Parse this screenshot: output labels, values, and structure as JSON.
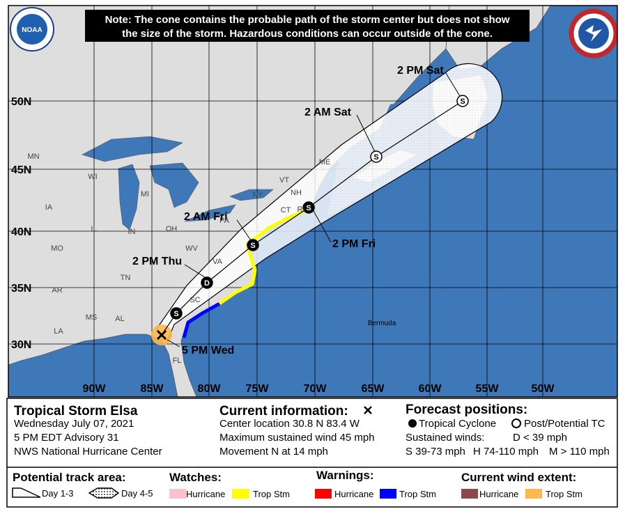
{
  "note_lines": [
    "Note: The cone contains the probable path of the storm center but does not show",
    "the size of the storm. Hazardous conditions can occur outside of the cone."
  ],
  "logos": {
    "noaa": "NOAA"
  },
  "map": {
    "lat_labels": [
      "50N",
      "45N",
      "40N",
      "35N",
      "30N"
    ],
    "lon_labels": [
      "90W",
      "85W",
      "80W",
      "75W",
      "70W",
      "65W",
      "60W",
      "55W",
      "50W"
    ],
    "state_labels": [
      "MN",
      "WI",
      "MI",
      "IA",
      "IL",
      "IN",
      "OH",
      "MO",
      "WV",
      "VA",
      "TN",
      "AR",
      "SC",
      "MS",
      "AL",
      "LA",
      "FL",
      "PA",
      "NY",
      "VT",
      "NH",
      "ME",
      "CT",
      "RI"
    ],
    "place_labels": [
      "Bermuda"
    ],
    "current_position": {
      "label": "5 PM Wed"
    },
    "forecast_points": [
      {
        "symbol": "S",
        "tropical": true
      },
      {
        "symbol": "D",
        "label": "2 PM Thu",
        "tropical": true
      },
      {
        "symbol": "S",
        "label": "2 AM Fri",
        "tropical": true
      },
      {
        "symbol": "S",
        "label": "2 PM Fri",
        "tropical": true
      },
      {
        "symbol": "S",
        "label": "2 AM Sat",
        "tropical": false
      },
      {
        "symbol": "S",
        "label": "2 PM Sat",
        "tropical": false
      }
    ]
  },
  "storm": {
    "name": "Tropical Storm Elsa",
    "date": "Wednesday July 07, 2021",
    "advisory": "5 PM EDT Advisory 31",
    "center": "NWS National Hurricane Center"
  },
  "current_information": {
    "title": "Current information:",
    "lines": [
      "Center location 30.8 N 83.4 W",
      "Maximum sustained wind 45 mph",
      "Movement N at 14 mph"
    ]
  },
  "forecast_positions": {
    "title": "Forecast positions:",
    "tropical_cyclone": "Tropical Cyclone",
    "post_tc": "Post/Potential TC",
    "sustained_winds": "Sustained winds:",
    "d": "D < 39 mph",
    "s": "S 39-73 mph",
    "h": "H 74-110 mph",
    "m": "M > 110 mph"
  },
  "legend": {
    "track": {
      "title": "Potential track area:",
      "day13": "Day 1-3",
      "day45": "Day 4-5"
    },
    "watches": {
      "title": "Watches:",
      "items": [
        {
          "label": "Hurricane",
          "color": "#ffc0cb"
        },
        {
          "label": "Trop Stm",
          "color": "#ffff00"
        }
      ]
    },
    "warnings": {
      "title": "Warnings:",
      "items": [
        {
          "label": "Hurricane",
          "color": "#ff0000"
        },
        {
          "label": "Trop Stm",
          "color": "#0000ff"
        }
      ]
    },
    "wind": {
      "title": "Current wind extent:",
      "items": [
        {
          "label": "Hurricane",
          "color": "#8b4a4a"
        },
        {
          "label": "Trop Stm",
          "color": "#ffb84d"
        }
      ]
    }
  }
}
